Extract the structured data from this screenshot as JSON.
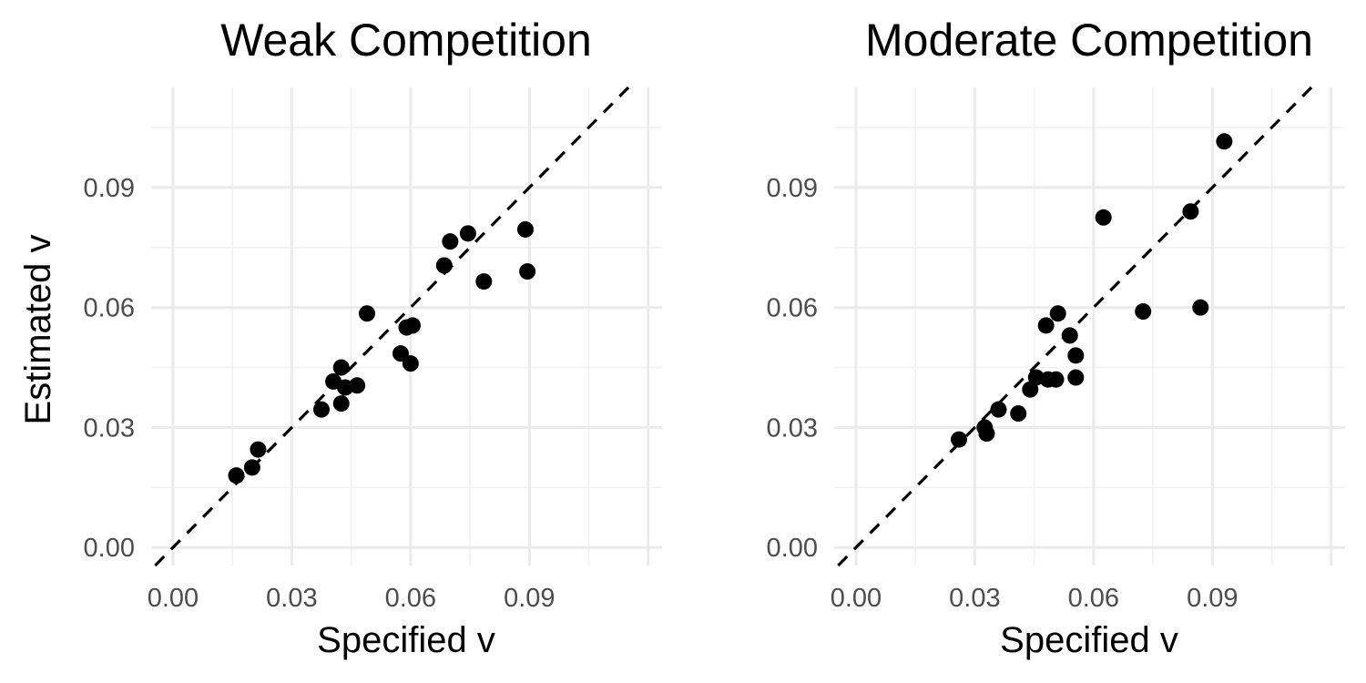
{
  "figure": {
    "ylabel": "Estimated v"
  },
  "chart_data": [
    {
      "type": "scatter",
      "title": "Weak Competition",
      "xlabel": "Specified v",
      "ylabel": "Estimated v",
      "xlim": [
        -0.0055,
        0.1235
      ],
      "ylim": [
        -0.0045,
        0.115
      ],
      "xticks": [
        "0.00",
        "0.03",
        "0.06",
        "0.09"
      ],
      "yticks": [
        "0.00",
        "0.03",
        "0.06",
        "0.09"
      ],
      "grid": true,
      "reference_line": "y = x",
      "points": [
        {
          "x": 0.016,
          "y": 0.018
        },
        {
          "x": 0.02,
          "y": 0.02
        },
        {
          "x": 0.0215,
          "y": 0.0245
        },
        {
          "x": 0.0375,
          "y": 0.0345
        },
        {
          "x": 0.0405,
          "y": 0.0415
        },
        {
          "x": 0.0425,
          "y": 0.036
        },
        {
          "x": 0.0425,
          "y": 0.045
        },
        {
          "x": 0.0435,
          "y": 0.04
        },
        {
          "x": 0.0465,
          "y": 0.0405
        },
        {
          "x": 0.049,
          "y": 0.0585
        },
        {
          "x": 0.0575,
          "y": 0.0485
        },
        {
          "x": 0.059,
          "y": 0.055
        },
        {
          "x": 0.06,
          "y": 0.046
        },
        {
          "x": 0.0605,
          "y": 0.0555
        },
        {
          "x": 0.0685,
          "y": 0.0705
        },
        {
          "x": 0.07,
          "y": 0.0765
        },
        {
          "x": 0.0745,
          "y": 0.0785
        },
        {
          "x": 0.0785,
          "y": 0.0665
        },
        {
          "x": 0.089,
          "y": 0.0795
        },
        {
          "x": 0.0895,
          "y": 0.069
        }
      ]
    },
    {
      "type": "scatter",
      "title": "Moderate Competition",
      "xlabel": "Specified v",
      "ylabel": "",
      "xlim": [
        -0.0055,
        0.1235
      ],
      "ylim": [
        -0.0045,
        0.115
      ],
      "xticks": [
        "0.00",
        "0.03",
        "0.06",
        "0.09"
      ],
      "yticks": [
        "0.00",
        "0.03",
        "0.06",
        "0.09"
      ],
      "grid": true,
      "reference_line": "y = x",
      "points": [
        {
          "x": 0.026,
          "y": 0.027
        },
        {
          "x": 0.0325,
          "y": 0.03
        },
        {
          "x": 0.033,
          "y": 0.0285
        },
        {
          "x": 0.036,
          "y": 0.0345
        },
        {
          "x": 0.041,
          "y": 0.0335
        },
        {
          "x": 0.044,
          "y": 0.0395
        },
        {
          "x": 0.0455,
          "y": 0.0425
        },
        {
          "x": 0.048,
          "y": 0.0555
        },
        {
          "x": 0.0485,
          "y": 0.042
        },
        {
          "x": 0.0505,
          "y": 0.042
        },
        {
          "x": 0.051,
          "y": 0.0585
        },
        {
          "x": 0.054,
          "y": 0.053
        },
        {
          "x": 0.0555,
          "y": 0.048
        },
        {
          "x": 0.0555,
          "y": 0.0425
        },
        {
          "x": 0.0625,
          "y": 0.0825
        },
        {
          "x": 0.0725,
          "y": 0.059
        },
        {
          "x": 0.0845,
          "y": 0.084
        },
        {
          "x": 0.087,
          "y": 0.06
        },
        {
          "x": 0.093,
          "y": 0.1015
        }
      ]
    }
  ]
}
